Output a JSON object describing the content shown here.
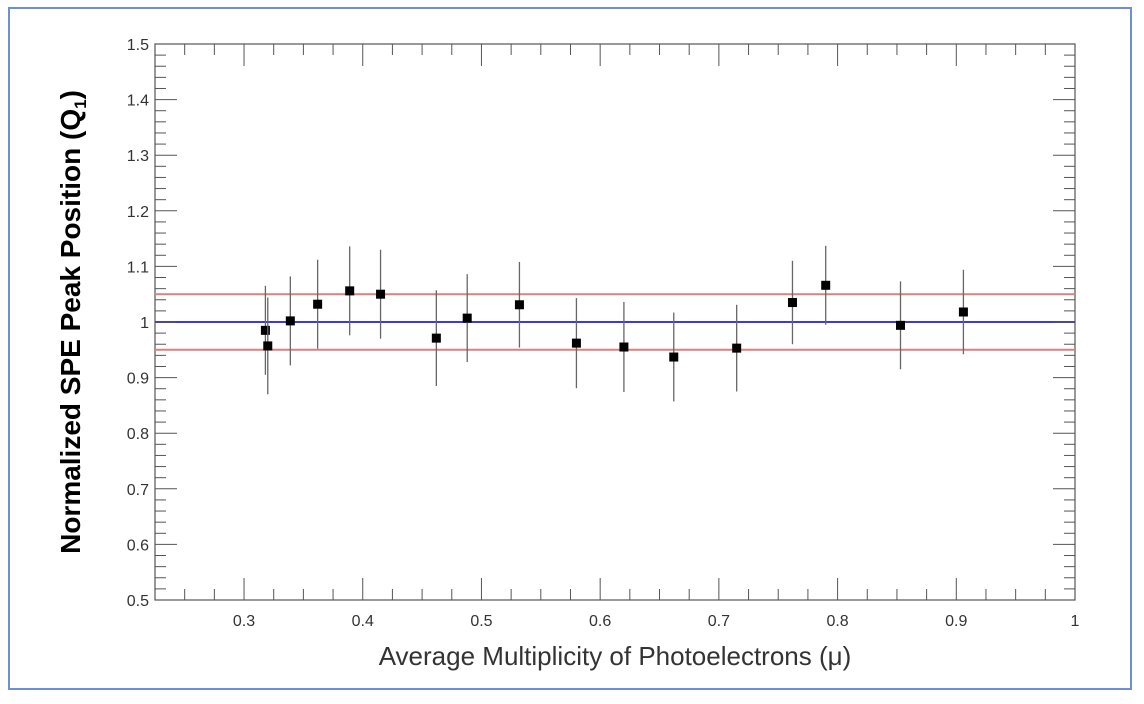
{
  "chart_data": {
    "type": "scatter",
    "title": "",
    "xlabel": "Average Multiplicity of Photoelectrons (μ)",
    "ylabel": {
      "main": "Normalized SPE Peak Position (Q",
      "subscript": "1",
      "close": ")"
    },
    "xlim": [
      0.225,
      1.0
    ],
    "ylim": [
      0.5,
      1.5
    ],
    "x_ticks": [
      {
        "value": 0.3,
        "label": "0.3"
      },
      {
        "value": 0.4,
        "label": "0.4"
      },
      {
        "value": 0.5,
        "label": "0.5"
      },
      {
        "value": 0.6,
        "label": "0.6"
      },
      {
        "value": 0.7,
        "label": "0.7"
      },
      {
        "value": 0.8,
        "label": "0.8"
      },
      {
        "value": 0.9,
        "label": "0.9"
      },
      {
        "value": 1.0,
        "label": "1"
      }
    ],
    "y_ticks": [
      {
        "value": 0.5,
        "label": "0.5"
      },
      {
        "value": 0.6,
        "label": "0.6"
      },
      {
        "value": 0.7,
        "label": "0.7"
      },
      {
        "value": 0.8,
        "label": "0.8"
      },
      {
        "value": 0.9,
        "label": "0.9"
      },
      {
        "value": 1.0,
        "label": "1"
      },
      {
        "value": 1.1,
        "label": "1.1"
      },
      {
        "value": 1.2,
        "label": "1.2"
      },
      {
        "value": 1.3,
        "label": "1.3"
      },
      {
        "value": 1.4,
        "label": "1.4"
      },
      {
        "value": 1.5,
        "label": "1.5"
      }
    ],
    "grid": false,
    "reference_lines": [
      {
        "y": 1.0,
        "color": "#3b3bd6"
      },
      {
        "y": 1.05,
        "color": "#d98080"
      },
      {
        "y": 0.95,
        "color": "#d98080"
      }
    ],
    "series": [
      {
        "marker": "square",
        "color": "#000000",
        "points": [
          {
            "x": 0.318,
            "y": 0.985,
            "err": 0.08
          },
          {
            "x": 0.32,
            "y": 0.957,
            "err": 0.087
          },
          {
            "x": 0.339,
            "y": 1.002,
            "err": 0.08
          },
          {
            "x": 0.362,
            "y": 1.032,
            "err": 0.08
          },
          {
            "x": 0.389,
            "y": 1.056,
            "err": 0.08
          },
          {
            "x": 0.415,
            "y": 1.05,
            "err": 0.08
          },
          {
            "x": 0.462,
            "y": 0.971,
            "err": 0.086
          },
          {
            "x": 0.488,
            "y": 1.007,
            "err": 0.079
          },
          {
            "x": 0.532,
            "y": 1.031,
            "err": 0.077
          },
          {
            "x": 0.58,
            "y": 0.962,
            "err": 0.081
          },
          {
            "x": 0.62,
            "y": 0.955,
            "err": 0.081
          },
          {
            "x": 0.662,
            "y": 0.937,
            "err": 0.08
          },
          {
            "x": 0.715,
            "y": 0.953,
            "err": 0.078
          },
          {
            "x": 0.762,
            "y": 1.035,
            "err": 0.075
          },
          {
            "x": 0.79,
            "y": 1.066,
            "err": 0.071
          },
          {
            "x": 0.853,
            "y": 0.994,
            "err": 0.079
          },
          {
            "x": 0.906,
            "y": 1.018,
            "err": 0.076
          }
        ]
      }
    ]
  }
}
